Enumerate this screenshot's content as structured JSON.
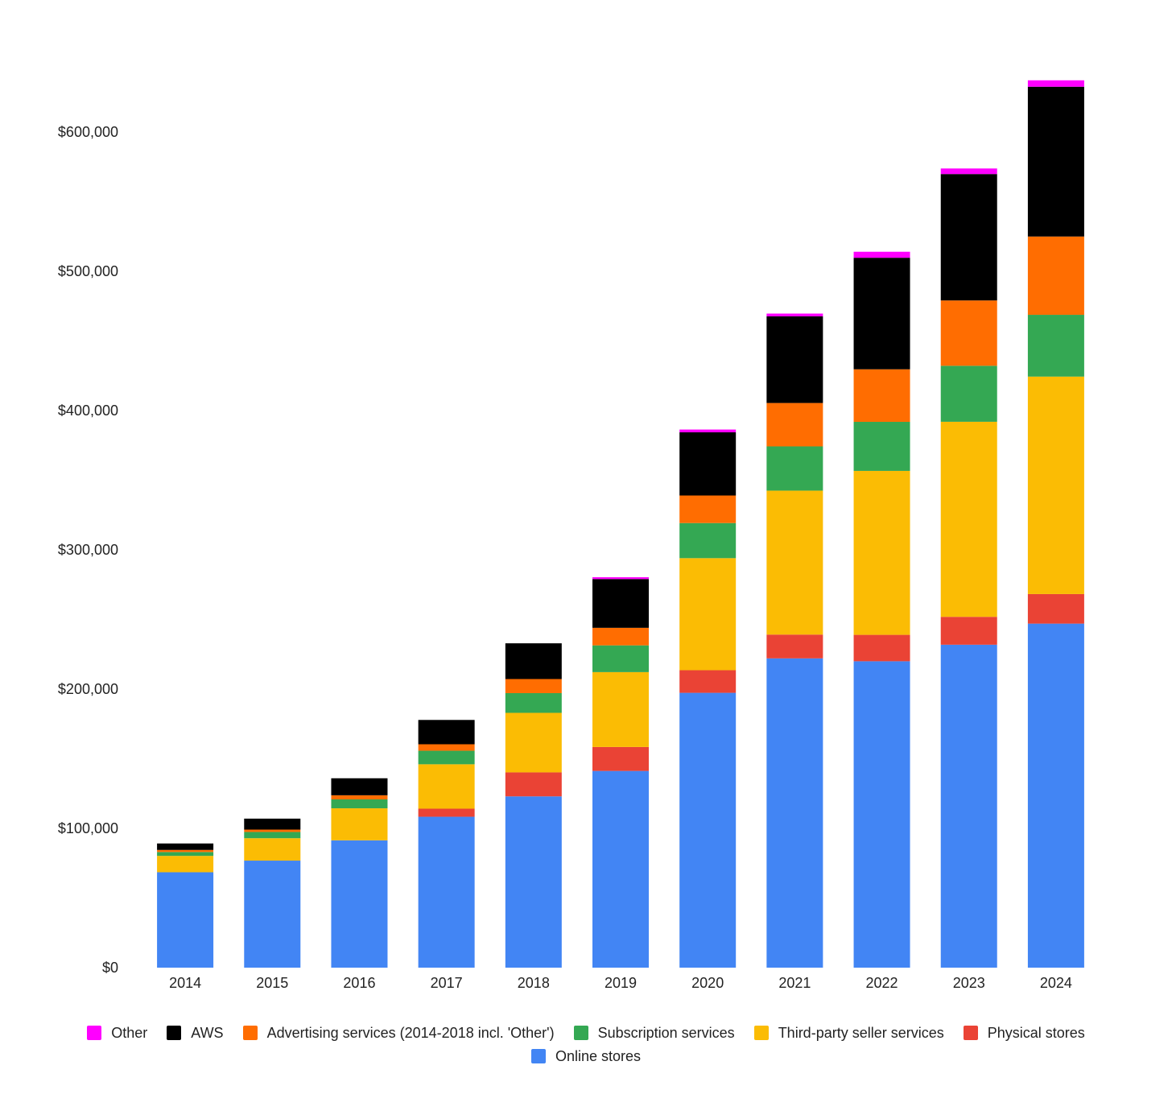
{
  "chart_data": {
    "type": "bar",
    "stacked": true,
    "title": "",
    "xlabel": "",
    "ylabel": "",
    "ylim": [
      0,
      650000
    ],
    "yticks": [
      0,
      100000,
      200000,
      300000,
      400000,
      500000,
      600000
    ],
    "ytick_labels": [
      "$0",
      "$100,000",
      "$200,000",
      "$300,000",
      "$400,000",
      "$500,000",
      "$600,000"
    ],
    "categories": [
      "2014",
      "2015",
      "2016",
      "2017",
      "2018",
      "2019",
      "2020",
      "2021",
      "2022",
      "2023",
      "2024"
    ],
    "series": [
      {
        "name": "Online stores",
        "color": "#4285F4",
        "values": [
          68513,
          76863,
          91431,
          108354,
          122987,
          141247,
          197346,
          222075,
          220004,
          231872,
          247029
        ]
      },
      {
        "name": "Physical stores",
        "color": "#EA4335",
        "values": [
          0,
          0,
          0,
          5798,
          17224,
          17192,
          16227,
          17075,
          18963,
          20030,
          21215
        ]
      },
      {
        "name": "Third-party seller services",
        "color": "#FBBC04",
        "values": [
          11747,
          16086,
          22993,
          31881,
          42745,
          53762,
          80461,
          103366,
          117716,
          140053,
          156146
        ]
      },
      {
        "name": "Subscription services",
        "color": "#34A853",
        "values": [
          2762,
          4467,
          6394,
          9721,
          14168,
          19210,
          25207,
          31768,
          35218,
          40209,
          44374
        ]
      },
      {
        "name": "Advertising services (2014-2018 incl. 'Other')",
        "color": "#FF6D01",
        "values": [
          1505,
          1710,
          2950,
          4653,
          10108,
          12600,
          19773,
          31160,
          37739,
          46906,
          56214
        ]
      },
      {
        "name": "AWS",
        "color": "#000000",
        "values": [
          4644,
          7880,
          12219,
          17459,
          25655,
          35026,
          45370,
          62202,
          80096,
          90757,
          107556
        ]
      },
      {
        "name": "Other",
        "color": "#FF00FF",
        "values": [
          0,
          0,
          0,
          0,
          0,
          1300,
          2000,
          2000,
          4300,
          4000,
          4600
        ]
      }
    ],
    "legend": {
      "position": "bottom",
      "order": [
        "Other",
        "AWS",
        "Advertising services (2014-2018 incl. 'Other')",
        "Subscription services",
        "Third-party seller services",
        "Physical stores",
        "Online stores"
      ]
    }
  }
}
